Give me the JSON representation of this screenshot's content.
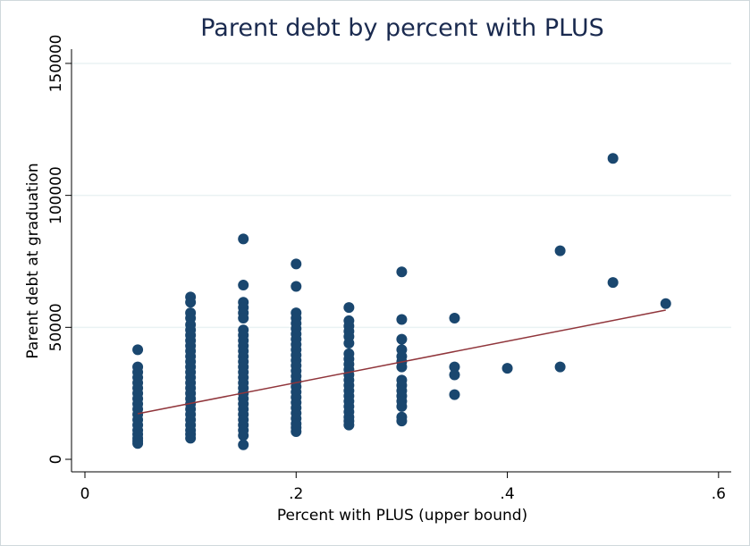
{
  "chart_data": {
    "type": "scatter",
    "title": "Parent debt by percent with PLUS",
    "xlabel": "Percent with PLUS (upper bound)",
    "ylabel": "Parent debt at graduation",
    "xlim": [
      -0.0127,
      0.612
    ],
    "ylim": [
      -4740,
      155400
    ],
    "xticks": [
      0,
      {
        "value": 0.2,
        "label": ".2"
      },
      {
        "value": 0.4,
        "label": ".4"
      },
      {
        "value": 0.6,
        "label": ".6"
      }
    ],
    "yticks": [
      0,
      50000,
      100000,
      150000
    ],
    "grid": true,
    "series": [
      {
        "type": "scatter",
        "color": "#1a476f",
        "x": [
          0.05,
          0.05,
          0.05,
          0.05,
          0.05,
          0.05,
          0.05,
          0.05,
          0.05,
          0.05,
          0.05,
          0.05,
          0.05,
          0.05,
          0.05,
          0.05,
          0.05,
          0.05,
          0.1,
          0.1,
          0.1,
          0.1,
          0.1,
          0.1,
          0.1,
          0.1,
          0.1,
          0.1,
          0.1,
          0.1,
          0.1,
          0.1,
          0.1,
          0.1,
          0.1,
          0.1,
          0.1,
          0.1,
          0.1,
          0.1,
          0.1,
          0.1,
          0.1,
          0.1,
          0.1,
          0.15,
          0.15,
          0.15,
          0.15,
          0.15,
          0.15,
          0.15,
          0.15,
          0.15,
          0.15,
          0.15,
          0.15,
          0.15,
          0.15,
          0.15,
          0.15,
          0.15,
          0.15,
          0.15,
          0.15,
          0.15,
          0.15,
          0.15,
          0.15,
          0.15,
          0.15,
          0.15,
          0.15,
          0.2,
          0.2,
          0.2,
          0.2,
          0.2,
          0.2,
          0.2,
          0.2,
          0.2,
          0.2,
          0.2,
          0.2,
          0.2,
          0.2,
          0.2,
          0.2,
          0.2,
          0.2,
          0.2,
          0.2,
          0.2,
          0.2,
          0.2,
          0.2,
          0.2,
          0.2,
          0.25,
          0.25,
          0.25,
          0.25,
          0.25,
          0.25,
          0.25,
          0.25,
          0.25,
          0.25,
          0.25,
          0.25,
          0.25,
          0.25,
          0.25,
          0.25,
          0.25,
          0.25,
          0.25,
          0.25,
          0.25,
          0.3,
          0.3,
          0.3,
          0.3,
          0.3,
          0.3,
          0.3,
          0.3,
          0.3,
          0.3,
          0.3,
          0.3,
          0.3,
          0.3,
          0.3,
          0.35,
          0.35,
          0.35,
          0.35,
          0.4,
          0.45,
          0.45,
          0.5,
          0.5,
          0.55
        ],
        "values": [
          41500,
          35000,
          33000,
          31000,
          29000,
          27000,
          25000,
          23000,
          21000,
          19000,
          17000,
          15000,
          13000,
          11000,
          9500,
          8000,
          7000,
          6000,
          61500,
          59500,
          55500,
          53500,
          51000,
          49000,
          47000,
          45000,
          43000,
          41000,
          39000,
          37000,
          35000,
          33000,
          31000,
          29000,
          27000,
          25000,
          23000,
          21000,
          19000,
          17000,
          15000,
          13000,
          11000,
          9500,
          8000,
          83500,
          66000,
          59500,
          57500,
          55500,
          53500,
          49000,
          47000,
          45000,
          43000,
          41000,
          39000,
          37000,
          35000,
          33000,
          31000,
          29000,
          27000,
          25000,
          23000,
          21000,
          19000,
          17000,
          15000,
          13000,
          11000,
          9000,
          5500,
          74000,
          65500,
          55500,
          53500,
          51500,
          49500,
          47500,
          45500,
          43500,
          41500,
          39500,
          37500,
          35500,
          33500,
          31500,
          29500,
          27500,
          25500,
          23500,
          21500,
          19500,
          17500,
          15500,
          13500,
          12000,
          10500,
          57500,
          52500,
          50500,
          48500,
          46500,
          44000,
          40000,
          38000,
          36000,
          34000,
          32000,
          30000,
          28000,
          26000,
          24000,
          22000,
          20000,
          18000,
          16000,
          14500,
          13000,
          71000,
          53000,
          45500,
          41500,
          39000,
          37000,
          35000,
          30000,
          28000,
          26000,
          24000,
          22000,
          20000,
          16000,
          14500,
          53500,
          35000,
          32000,
          24500,
          34500,
          79000,
          35000,
          114000,
          67000,
          59000
        ]
      },
      {
        "type": "line",
        "color": "#90353b",
        "x": [
          0.05,
          0.55
        ],
        "values": [
          17260,
          56530
        ]
      }
    ]
  }
}
